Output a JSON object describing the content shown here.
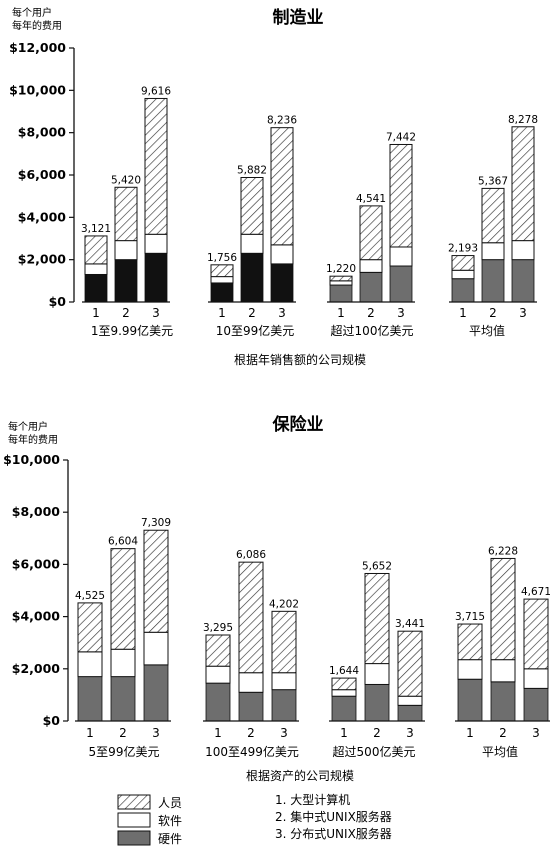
{
  "colors": {
    "hardware_dark": "#111111",
    "hardware_gray": "#6e6e6e",
    "software": "#ffffff",
    "personnel_hatch": "#333333",
    "frame": "#111111"
  },
  "legend": {
    "series": [
      {
        "key": "personnel",
        "label": "人员"
      },
      {
        "key": "software",
        "label": "软件"
      },
      {
        "key": "hardware",
        "label": "硬件"
      }
    ],
    "systems": [
      "1. 大型计算机",
      "2. 集中式UNIX服务器",
      "3. 分布式UNIX服务器"
    ]
  },
  "chart_data": [
    {
      "type": "bar",
      "stacked": true,
      "title": "制造业",
      "ylabel_lines": [
        "每个用户",
        "每年的费用"
      ],
      "xlabel": "根据年销售额的公司规模",
      "ylim": [
        0,
        12000
      ],
      "yticks": [
        "$0",
        "$2,000",
        "$4,000",
        "$6,000",
        "$8,000",
        "$10,000",
        "$12,000"
      ],
      "bar_labels": [
        "1",
        "2",
        "3"
      ],
      "groups": [
        {
          "label": "1至9.99亿美元",
          "hardware_color": "dark",
          "bars": [
            {
              "total_label": "3,121",
              "hardware": 1300,
              "software": 500,
              "personnel": 1321
            },
            {
              "total_label": "5,420",
              "hardware": 2000,
              "software": 900,
              "personnel": 2520
            },
            {
              "total_label": "9,616",
              "hardware": 2300,
              "software": 900,
              "personnel": 6416
            }
          ]
        },
        {
          "label": "10至99亿美元",
          "hardware_color": "dark",
          "bars": [
            {
              "total_label": "1,756",
              "hardware": 900,
              "software": 300,
              "personnel": 556
            },
            {
              "total_label": "5,882",
              "hardware": 2300,
              "software": 900,
              "personnel": 2682
            },
            {
              "total_label": "8,236",
              "hardware": 1800,
              "software": 900,
              "personnel": 5536
            }
          ]
        },
        {
          "label": "超过100亿美元",
          "hardware_color": "gray",
          "bars": [
            {
              "total_label": "1,220",
              "hardware": 800,
              "software": 200,
              "personnel": 220
            },
            {
              "total_label": "4,541",
              "hardware": 1400,
              "software": 600,
              "personnel": 2541
            },
            {
              "total_label": "7,442",
              "hardware": 1700,
              "software": 900,
              "personnel": 4842
            }
          ]
        },
        {
          "label": "平均值",
          "hardware_color": "gray",
          "bars": [
            {
              "total_label": "2,193",
              "hardware": 1100,
              "software": 400,
              "personnel": 693
            },
            {
              "total_label": "5,367",
              "hardware": 2000,
              "software": 800,
              "personnel": 2567
            },
            {
              "total_label": "8,278",
              "hardware": 2000,
              "software": 900,
              "personnel": 5378
            }
          ]
        }
      ]
    },
    {
      "type": "bar",
      "stacked": true,
      "title": "保险业",
      "ylabel_lines": [
        "每个用户",
        "每年的费用"
      ],
      "xlabel": "根据资产的公司规模",
      "ylim": [
        0,
        10000
      ],
      "yticks": [
        "$0",
        "$2,000",
        "$4,000",
        "$6,000",
        "$8,000",
        "$10,000"
      ],
      "bar_labels": [
        "1",
        "2",
        "3"
      ],
      "groups": [
        {
          "label": "5至99亿美元",
          "hardware_color": "gray",
          "bars": [
            {
              "total_label": "4,525",
              "hardware": 1700,
              "software": 950,
              "personnel": 1875
            },
            {
              "total_label": "6,604",
              "hardware": 1700,
              "software": 1050,
              "personnel": 3854
            },
            {
              "total_label": "7,309",
              "hardware": 2150,
              "software": 1250,
              "personnel": 3909
            }
          ]
        },
        {
          "label": "100至499亿美元",
          "hardware_color": "gray",
          "bars": [
            {
              "total_label": "3,295",
              "hardware": 1450,
              "software": 650,
              "personnel": 1195
            },
            {
              "total_label": "6,086",
              "hardware": 1100,
              "software": 750,
              "personnel": 4236
            },
            {
              "total_label": "4,202",
              "hardware": 1200,
              "software": 650,
              "personnel": 2352
            }
          ]
        },
        {
          "label": "超过500亿美元",
          "hardware_color": "gray",
          "bars": [
            {
              "total_label": "1,644",
              "hardware": 950,
              "software": 250,
              "personnel": 444
            },
            {
              "total_label": "5,652",
              "hardware": 1400,
              "software": 800,
              "personnel": 3452
            },
            {
              "total_label": "3,441",
              "hardware": 600,
              "software": 350,
              "personnel": 2491
            }
          ]
        },
        {
          "label": "平均值",
          "hardware_color": "gray",
          "bars": [
            {
              "total_label": "3,715",
              "hardware": 1600,
              "software": 750,
              "personnel": 1365
            },
            {
              "total_label": "6,228",
              "hardware": 1500,
              "software": 850,
              "personnel": 3878
            },
            {
              "total_label": "4,671",
              "hardware": 1250,
              "software": 750,
              "personnel": 2671
            }
          ]
        }
      ]
    }
  ]
}
